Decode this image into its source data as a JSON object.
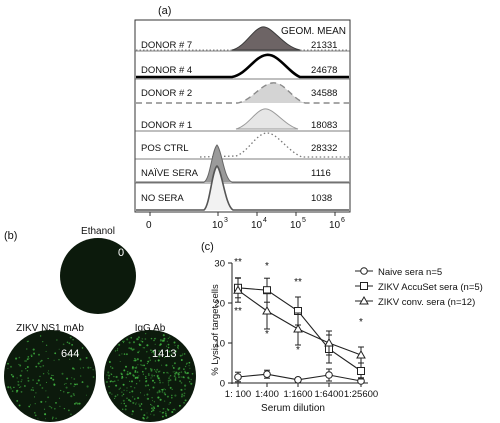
{
  "panel_a": {
    "label": "(a)",
    "header": "GEOM. MEAN",
    "rows": [
      {
        "name": "DONOR # 7",
        "value": "21331"
      },
      {
        "name": "DONOR # 4",
        "value": "24678"
      },
      {
        "name": "DONOR # 2",
        "value": "34588"
      },
      {
        "name": "DONOR # 1",
        "value": "18083"
      },
      {
        "name": "POS CTRL",
        "value": "28332"
      },
      {
        "name": "NAÏVE SERA",
        "value": "1116"
      },
      {
        "name": "NO SERA",
        "value": "1038"
      }
    ],
    "axis_ticks": [
      "0",
      "10",
      "10",
      "10",
      "10"
    ],
    "axis_exponents": [
      "",
      "3",
      "4",
      "5",
      "6"
    ]
  },
  "panel_b": {
    "label": "(b)",
    "wells": [
      {
        "name": "Ethanol",
        "count": "0"
      },
      {
        "name": "ZIKV NS1 mAb",
        "count": "644"
      },
      {
        "name": "IgG Ab",
        "count": "1413"
      }
    ],
    "colors": {
      "well_bg": "#0c1a0c",
      "dots": "#3fae3f"
    }
  },
  "panel_c": {
    "label": "(c)",
    "significance": [
      "**",
      "*",
      "**",
      "*",
      "**",
      "*",
      "*"
    ],
    "legend": [
      "Naive sera n=5",
      "ZIKV AccuSet sera (n=5)",
      "ZIKV conv. sera (n=12)"
    ]
  },
  "chart_data": {
    "type": "line",
    "xlabel": "Serum dilution",
    "ylabel": "% Lysis of target cells",
    "categories": [
      "1: 100",
      "1:400",
      "1:1600",
      "1:6400",
      "1:25600"
    ],
    "ylim": [
      0,
      30
    ],
    "yticks": [
      "0",
      "10",
      "20",
      "30"
    ],
    "grid": false,
    "legend_position": "right",
    "series": [
      {
        "name": "Naive sera n=5",
        "marker": "circle",
        "values": [
          1.5,
          2.2,
          0.8,
          2.0,
          0.5
        ],
        "errors": [
          1.2,
          1.0,
          0.5,
          1.5,
          0.8
        ]
      },
      {
        "name": "ZIKV AccuSet sera (n=5)",
        "marker": "square",
        "values": [
          23.8,
          23.2,
          18.0,
          8.5,
          3.0
        ],
        "errors": [
          2.5,
          3.0,
          3.5,
          3.5,
          2.0
        ]
      },
      {
        "name": "ZIKV conv. sera (n=12)",
        "marker": "triangle",
        "values": [
          23.2,
          18.0,
          13.5,
          10.0,
          7.0
        ],
        "errors": [
          3.0,
          4.5,
          4.0,
          3.0,
          2.0
        ]
      }
    ]
  }
}
